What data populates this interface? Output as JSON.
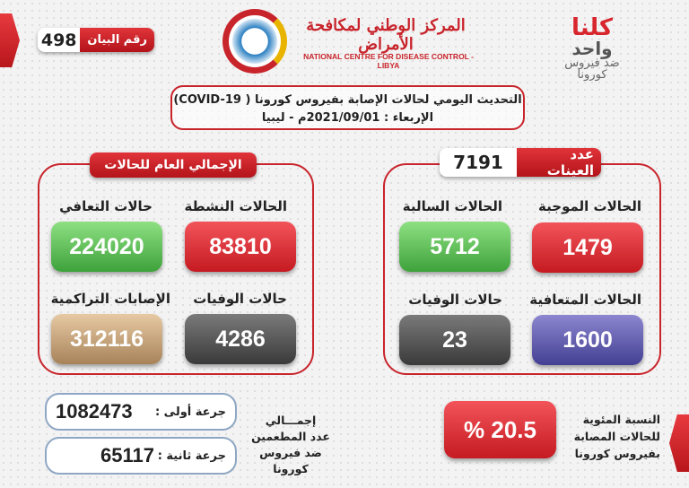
{
  "header": {
    "statement_label": "رقم البيان",
    "statement_number": "498",
    "logo_arabic": "المركز الوطني لمكافحة الأمراض",
    "logo_english": "NATIONAL CENTRE FOR DISEASE CONTROL - LIBYA",
    "slogan": [
      "كلنا",
      "واحد",
      "ضد فيروس",
      "كورونا"
    ]
  },
  "update": {
    "line1": "التحديث اليومي لحالات الإصابة بفيروس كورونا ( COVID-19)",
    "line2": "الإربعاء : 2021/09/01م - ليبيا"
  },
  "totals": {
    "title": "الإجمالي العام للحالات",
    "cards": [
      {
        "label": "الحالات النشطة",
        "value": "83810",
        "color": "#d8262d"
      },
      {
        "label": "حالات التعافي",
        "value": "224020",
        "color": "#4caf45"
      },
      {
        "label": "حالات الوفيات",
        "value": "4286",
        "color": "#4a4a4a"
      },
      {
        "label": "الإصابات التراكمية",
        "value": "312116",
        "color": "#b8936a"
      }
    ]
  },
  "samples": {
    "label": "عدد العينات",
    "value": "7191",
    "cards": [
      {
        "label": "الحالات الموجبة",
        "value": "1479",
        "color": "#d8262d"
      },
      {
        "label": "الحالات السالبة",
        "value": "5712",
        "color": "#4caf45"
      },
      {
        "label": "الحالات المتعافية",
        "value": "1600",
        "color": "#4f4a9e"
      },
      {
        "label": "حالات الوفيات",
        "value": "23",
        "color": "#444444"
      }
    ]
  },
  "vaccination": {
    "title": [
      "إجمـــالي",
      "عدد المطعمين",
      "ضد فيروس كورونا"
    ],
    "dose1_label": "جرعة أولى :",
    "dose1_value": "1082473",
    "dose2_label": "جرعة ثانية :",
    "dose2_value": "65117"
  },
  "positivity": {
    "label": [
      "النسبة المئوية",
      "للحالات المصابة",
      "بفيروس كورونا"
    ],
    "value": "% 20.5"
  }
}
